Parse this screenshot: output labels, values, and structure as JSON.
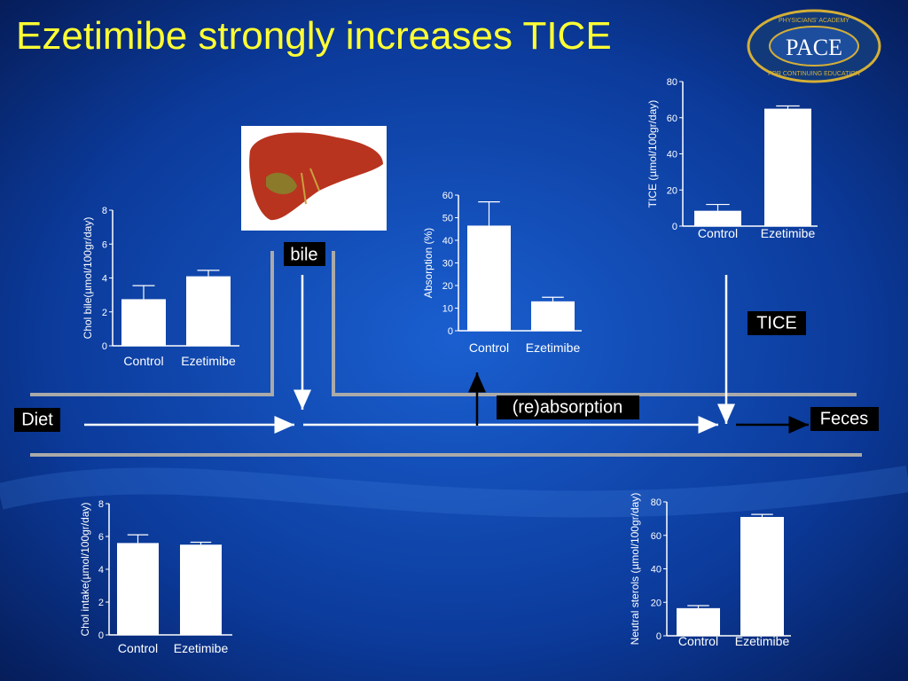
{
  "title": "Ezetimibe strongly increases TICE",
  "logo": {
    "name": "PACE",
    "top": "PHYSICIANS' ACADEMY",
    "bottom": "FOR CONTINUING EDUCATION"
  },
  "labels": {
    "bile": "bile",
    "tice": "TICE",
    "diet": "Diet",
    "feces": "Feces",
    "reabsorption": "(re)absorption"
  },
  "chart_data": [
    {
      "type": "bar",
      "y_label": "Chol bile(µmol/100gr/day)",
      "categories": [
        "Control",
        "Ezetimibe"
      ],
      "values": [
        2.75,
        4.1
      ],
      "errors": [
        0.8,
        0.35
      ],
      "color": "#ffffff",
      "ylim": [
        0,
        8
      ],
      "yticks": [
        0,
        2,
        4,
        6,
        8
      ]
    },
    {
      "type": "bar",
      "y_label": "Absorption (%)",
      "categories": [
        "Control",
        "Ezetimibe"
      ],
      "values": [
        46.5,
        13
      ],
      "errors": [
        10.5,
        1.8
      ],
      "color": "#ffffff",
      "ylim": [
        0,
        60
      ],
      "yticks": [
        0,
        10,
        20,
        30,
        40,
        50,
        60
      ]
    },
    {
      "type": "bar",
      "y_label": "TICE (µmol/100gr/day)",
      "categories": [
        "Control",
        "Ezetimibe"
      ],
      "values": [
        8.5,
        65
      ],
      "errors": [
        3.5,
        1.5
      ],
      "color": "#ffffff",
      "ylim": [
        0,
        80
      ],
      "yticks": [
        0,
        20,
        40,
        60,
        80
      ]
    },
    {
      "type": "bar",
      "y_label": "Chol intake(µmol/100gr/day)",
      "categories": [
        "Control",
        "Ezetimibe"
      ],
      "values": [
        5.6,
        5.5
      ],
      "errors": [
        0.5,
        0.15
      ],
      "color": "#ffffff",
      "ylim": [
        0,
        8
      ],
      "yticks": [
        0,
        2,
        4,
        6,
        8
      ]
    },
    {
      "type": "bar",
      "y_label": "Neutral sterols (µmol/100gr/day)",
      "categories": [
        "Control",
        "Ezetimibe"
      ],
      "values": [
        16.5,
        71
      ],
      "errors": [
        1.5,
        1.5
      ],
      "color": "#ffffff",
      "ylim": [
        0,
        80
      ],
      "yticks": [
        0,
        20,
        40,
        60,
        80
      ]
    }
  ]
}
